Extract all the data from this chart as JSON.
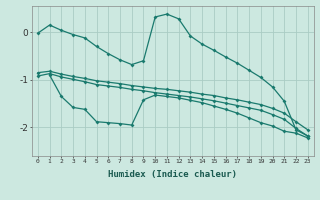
{
  "xlabel": "Humidex (Indice chaleur)",
  "bg_color": "#cce8e0",
  "line_color": "#1a7a6e",
  "grid_color": "#aaccc4",
  "xlim": [
    -0.5,
    23.5
  ],
  "ylim": [
    -2.6,
    0.55
  ],
  "yticks": [
    0,
    -1,
    -2
  ],
  "xticks": [
    0,
    1,
    2,
    3,
    4,
    5,
    6,
    7,
    8,
    9,
    10,
    11,
    12,
    13,
    14,
    15,
    16,
    17,
    18,
    19,
    20,
    21,
    22,
    23
  ],
  "series1_x": [
    0,
    1,
    2,
    3,
    4,
    5,
    6,
    7,
    8,
    9,
    10,
    11,
    12,
    13,
    14,
    15,
    16,
    17,
    18,
    19,
    20,
    21,
    22,
    23
  ],
  "series1_y": [
    -0.02,
    0.15,
    0.04,
    -0.05,
    -0.12,
    -0.3,
    -0.45,
    -0.58,
    -0.68,
    -0.6,
    0.32,
    0.38,
    0.28,
    -0.08,
    -0.25,
    -0.38,
    -0.52,
    -0.65,
    -0.8,
    -0.95,
    -1.15,
    -1.45,
    -2.05,
    -2.18
  ],
  "series2_x": [
    0,
    1,
    2,
    3,
    4,
    5,
    6,
    7,
    8,
    9,
    10,
    11,
    12,
    13,
    14,
    15,
    16,
    17,
    18,
    19,
    20,
    21,
    22,
    23
  ],
  "series2_y": [
    -0.85,
    -0.82,
    -0.88,
    -0.93,
    -0.97,
    -1.02,
    -1.05,
    -1.08,
    -1.12,
    -1.15,
    -1.18,
    -1.2,
    -1.23,
    -1.26,
    -1.3,
    -1.33,
    -1.38,
    -1.42,
    -1.47,
    -1.52,
    -1.6,
    -1.7,
    -1.88,
    -2.05
  ],
  "series3_x": [
    0,
    1,
    2,
    3,
    4,
    5,
    6,
    7,
    8,
    9,
    10,
    11,
    12,
    13,
    14,
    15,
    16,
    17,
    18,
    19,
    20,
    21,
    22,
    23
  ],
  "series3_y": [
    -0.92,
    -0.87,
    -0.94,
    -0.99,
    -1.04,
    -1.1,
    -1.13,
    -1.16,
    -1.2,
    -1.23,
    -1.27,
    -1.3,
    -1.33,
    -1.36,
    -1.4,
    -1.44,
    -1.49,
    -1.54,
    -1.59,
    -1.64,
    -1.73,
    -1.83,
    -2.02,
    -2.18
  ],
  "series4_x": [
    1,
    2,
    3,
    4,
    5,
    6,
    7,
    8,
    9,
    10,
    11,
    12,
    13,
    14,
    15,
    16,
    17,
    18,
    19,
    20,
    21,
    22,
    23
  ],
  "series4_y": [
    -0.9,
    -1.35,
    -1.58,
    -1.62,
    -1.88,
    -1.9,
    -1.92,
    -1.95,
    -1.42,
    -1.32,
    -1.35,
    -1.38,
    -1.43,
    -1.48,
    -1.55,
    -1.62,
    -1.7,
    -1.8,
    -1.9,
    -1.97,
    -2.08,
    -2.12,
    -2.22
  ]
}
